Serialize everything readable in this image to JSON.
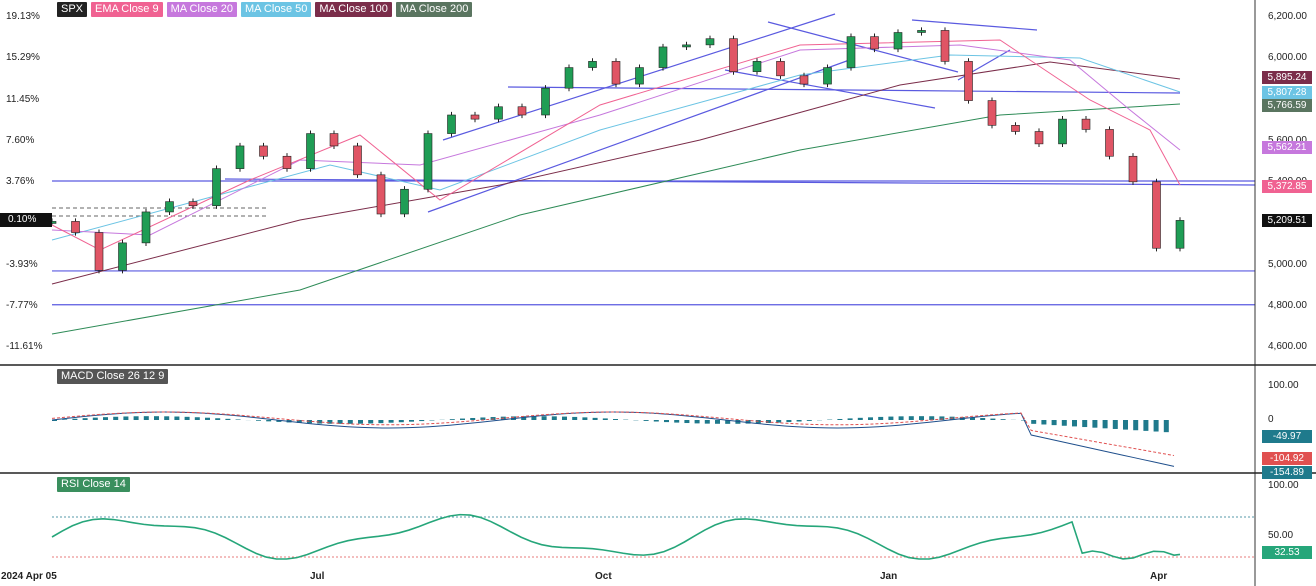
{
  "legend": [
    {
      "label": "SPX",
      "color": "#222222"
    },
    {
      "label": "EMA Close 9",
      "color": "#f06292"
    },
    {
      "label": "MA Close 20",
      "color": "#c678dd"
    },
    {
      "label": "MA Close 50",
      "color": "#6cc4e4"
    },
    {
      "label": "MA Close 100",
      "color": "#7b2d4a"
    },
    {
      "label": "MA Close 200",
      "color": "#5a7560"
    }
  ],
  "macd_title": "MACD Close 26 12 9",
  "rsi_title": "RSI Close 14",
  "left_axis": [
    "19.13%",
    "15.29%",
    "11.45%",
    "7.60%",
    "3.76%",
    "0.10%",
    "-3.93%",
    "-7.77%",
    "-11.61%"
  ],
  "right_axis": [
    "6,200.00",
    "6,000.00",
    "5,800.00",
    "5,600.00",
    "5,400.00",
    "5,000.00",
    "4,800.00",
    "4,600.00"
  ],
  "macd_axis": [
    "100.00",
    "0"
  ],
  "rsi_axis": [
    "100.00",
    "50.00"
  ],
  "x_axis": [
    "2024 Apr 05",
    "Jul",
    "Oct",
    "Jan",
    "Apr"
  ],
  "price_tags": [
    {
      "value": "5,895.24",
      "color": "#7b2d4a"
    },
    {
      "value": "5,807.28",
      "color": "#6cc4e4"
    },
    {
      "value": "5,766.59",
      "color": "#5a7560"
    },
    {
      "value": "5,562.21",
      "color": "#c678dd"
    },
    {
      "value": "5,372.85",
      "color": "#f06292"
    },
    {
      "value": "5,209.51",
      "color": "#111111"
    }
  ],
  "macd_tags": [
    {
      "value": "-49.97",
      "color": "#1f7a8c"
    },
    {
      "value": "-104.92",
      "color": "#e05050"
    },
    {
      "value": "-154.89",
      "color": "#1f7a8c"
    }
  ],
  "rsi_tag": {
    "value": "32.53",
    "color": "#26a67a"
  },
  "left_tag": "0.10%",
  "chart_data": {
    "type": "line",
    "title": "SPX",
    "x_start": "2024-04-05",
    "x_end": "2025-04-04",
    "price_axis_ylim": [
      4600,
      6250
    ],
    "series": [
      {
        "name": "SPX",
        "values": [
          5204,
          5150,
          4967,
          5100,
          5250,
          5300,
          5280,
          5460,
          5570,
          5520,
          5460,
          5630,
          5570,
          5430,
          5240,
          5360,
          5630,
          5720,
          5700,
          5760,
          5720,
          5850,
          5950,
          5980,
          5870,
          5950,
          6050,
          6060,
          6090,
          5930,
          5980,
          5910,
          5870,
          5950,
          6100,
          6040,
          6120,
          6130,
          5980,
          5790,
          5670,
          5640,
          5580,
          5700,
          5650,
          5520,
          5396,
          5074,
          5209
        ]
      },
      {
        "name": "EMA Close 9",
        "last": 5372.85
      },
      {
        "name": "MA Close 20",
        "last": 5562.21
      },
      {
        "name": "MA Close 50",
        "last": 5807.28
      },
      {
        "name": "MA Close 100",
        "last": 5895.24
      },
      {
        "name": "MA Close 200",
        "last": 5766.59
      }
    ],
    "horizontal_levels": [
      5400,
      4964,
      4800
    ],
    "macd": {
      "ylim": [
        -160,
        110
      ],
      "last_macd": -154.89,
      "last_signal": -104.92,
      "last_histogram": -49.97
    },
    "rsi": {
      "ylim": [
        20,
        100
      ],
      "levels": [
        70,
        30
      ],
      "last": 32.53
    },
    "grid": false,
    "legend_position": "top-left"
  }
}
